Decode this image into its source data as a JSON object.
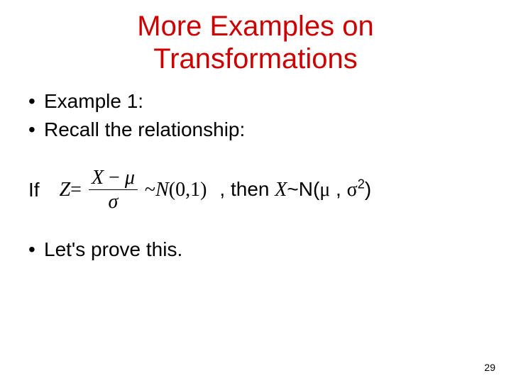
{
  "title_line1": "More Examples on",
  "title_line2": "Transformations",
  "title_color": "#cc0000",
  "bullets": {
    "b1": "Example 1:",
    "b2": "Recall the relationship:",
    "b3": "Let's prove this."
  },
  "math": {
    "if_label": "If",
    "z_eq": "Z",
    "equals": " = ",
    "num_X": "X",
    "num_minus": " − ",
    "num_mu": "μ",
    "den_sigma": "σ",
    "tilde_N01": " ~ ",
    "N_open": "N",
    "zero_one": "(0,1)",
    "then_comma": ", then ",
    "X": "X",
    "tilde2": "~",
    "N2": "N(",
    "mu2": "μ",
    "sep": " , ",
    "sigma2": "σ",
    "exp2": "2",
    "close": ")"
  },
  "page_number": "29",
  "colors": {
    "text": "#000000",
    "background": "#ffffff"
  },
  "fonts": {
    "body": "Arial",
    "math": "Times New Roman"
  }
}
